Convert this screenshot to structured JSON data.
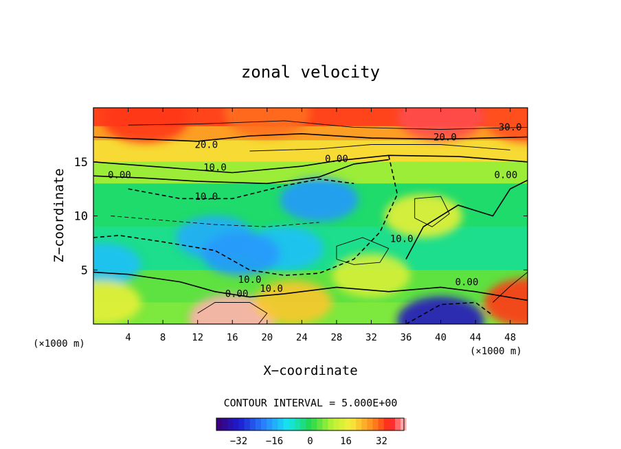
{
  "chart_data": {
    "type": "heatmap",
    "title": "zonal velocity",
    "xlabel": "X−coordinate",
    "ylabel": "Z−coordinate",
    "x_unit_left": "(×1000 m)",
    "x_unit_right": "(×1000 m)",
    "xlim": [
      0,
      50
    ],
    "ylim": [
      0,
      20
    ],
    "x_ticks": [
      4,
      8,
      12,
      16,
      20,
      24,
      28,
      32,
      36,
      40,
      44,
      48
    ],
    "y_ticks": [
      5,
      10,
      15
    ],
    "contour_interval_text": "CONTOUR INTERVAL = 5.000E+00",
    "colorbar": {
      "range": [
        -42,
        42
      ],
      "ticks": [
        -32,
        -16,
        0,
        16,
        32
      ]
    },
    "contour_labels": [
      {
        "text": "30.0",
        "x": 48.0,
        "y": 17.9
      },
      {
        "text": "20.0",
        "x": 40.5,
        "y": 17.0
      },
      {
        "text": "20.0",
        "x": 13.0,
        "y": 16.3
      },
      {
        "text": "10.0",
        "x": 14.0,
        "y": 14.2
      },
      {
        "text": "0.00",
        "x": 28.0,
        "y": 15.0
      },
      {
        "text": "0.00",
        "x": 3.0,
        "y": 13.5
      },
      {
        "text": "10.0",
        "x": 13.0,
        "y": 11.5
      },
      {
        "text": "0.00",
        "x": 47.5,
        "y": 13.5
      },
      {
        "text": "10.0",
        "x": 35.5,
        "y": 7.6
      },
      {
        "text": "10.0",
        "x": 18.0,
        "y": 3.8
      },
      {
        "text": "10.0",
        "x": 20.5,
        "y": 3.0
      },
      {
        "text": "0.00",
        "x": 16.5,
        "y": 2.5
      },
      {
        "text": "0.00",
        "x": 43.0,
        "y": 3.6
      }
    ],
    "field_features": [
      {
        "x": 6,
        "y": 19,
        "value": 34
      },
      {
        "x": 20,
        "y": 19.5,
        "value": 30
      },
      {
        "x": 40,
        "y": 19.2,
        "value": 38
      },
      {
        "x": 50,
        "y": 19,
        "value": 32
      },
      {
        "x": 14,
        "y": 8,
        "value": -16
      },
      {
        "x": 22,
        "y": 7,
        "value": -14
      },
      {
        "x": 26,
        "y": 11.5,
        "value": -18
      },
      {
        "x": 17,
        "y": 6.5,
        "value": -18
      },
      {
        "x": 38,
        "y": 10,
        "value": 16
      },
      {
        "x": 32,
        "y": 4.5,
        "value": 14
      },
      {
        "x": 1,
        "y": 5.5,
        "value": -14
      },
      {
        "x": 1,
        "y": 2,
        "value": 16
      },
      {
        "x": 16,
        "y": 0.5,
        "value": 44
      },
      {
        "x": 23,
        "y": 2,
        "value": 22
      },
      {
        "x": 40,
        "y": 0.3,
        "value": -34
      },
      {
        "x": 50,
        "y": 2,
        "value": 34
      }
    ]
  }
}
